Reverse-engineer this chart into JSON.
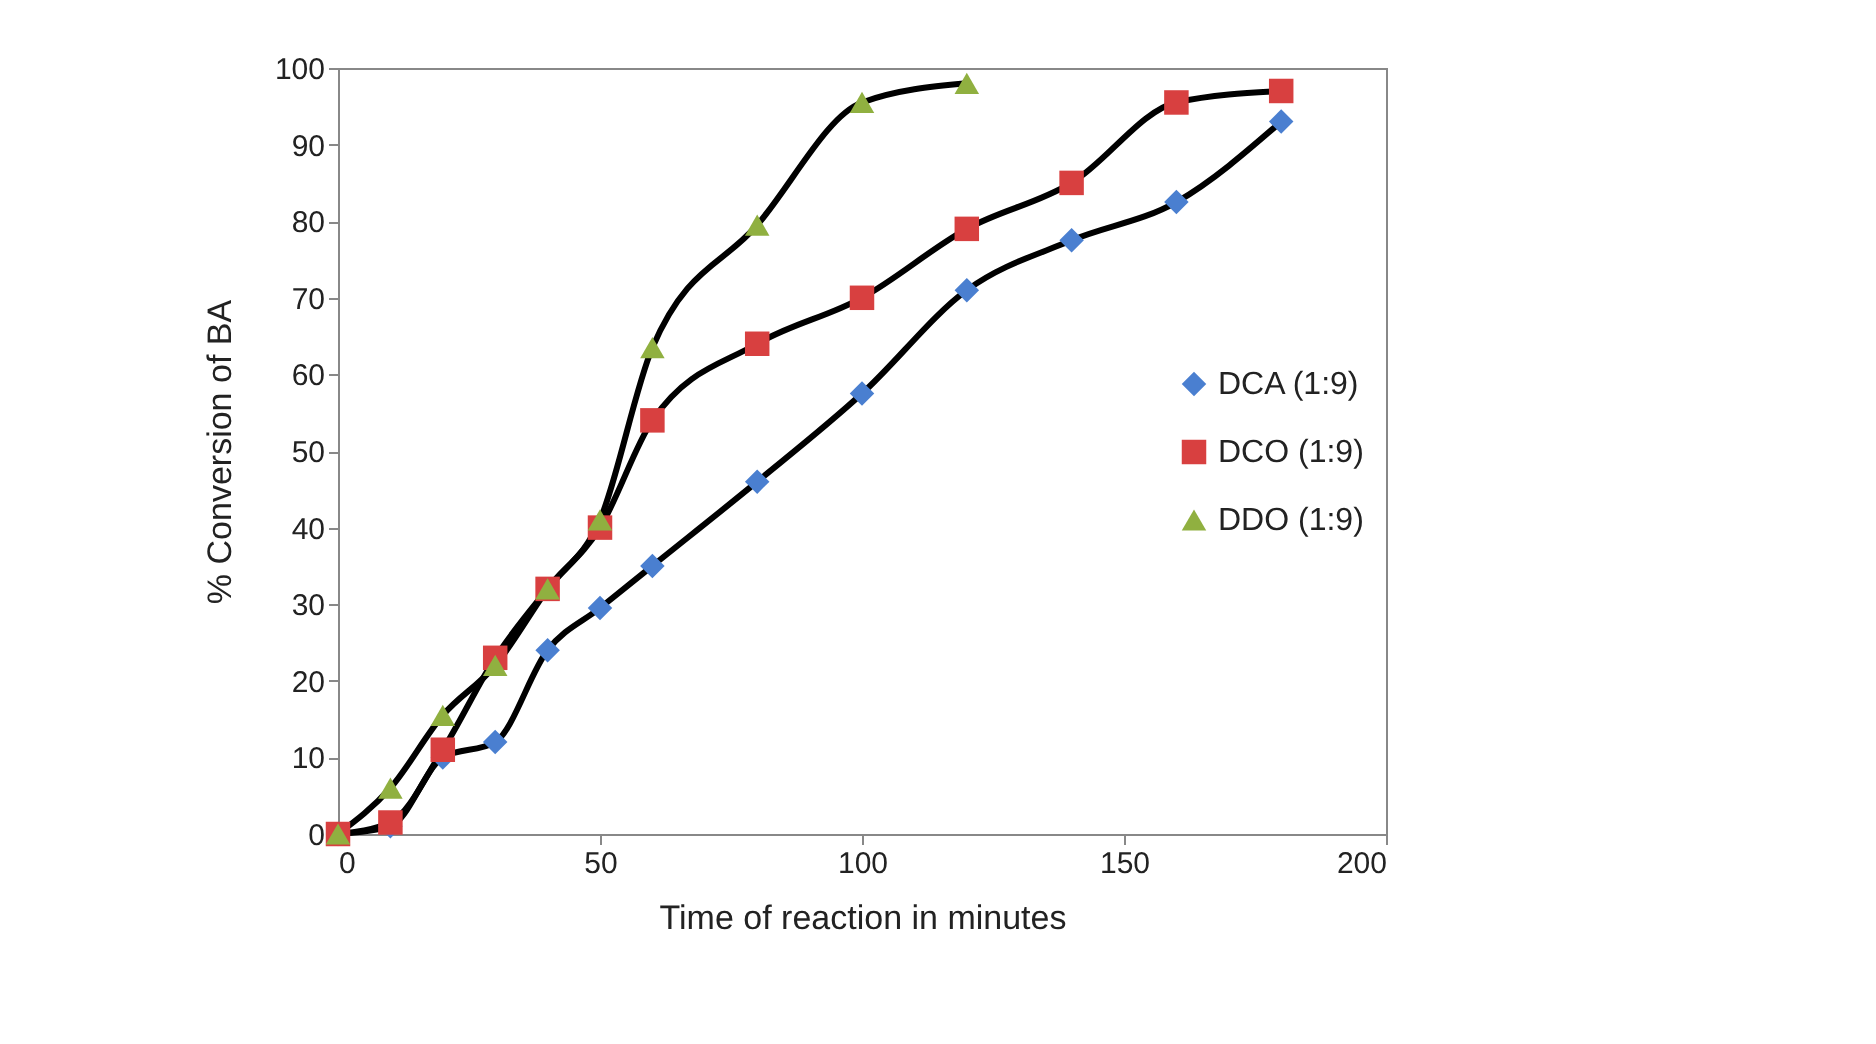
{
  "chart_data": {
    "type": "line",
    "xlabel": "Time of reaction in minutes",
    "ylabel": "% Conversion of BA",
    "xlim": [
      0,
      200
    ],
    "xticks": [
      0,
      50,
      100,
      150,
      200
    ],
    "ylim": [
      0,
      100
    ],
    "yticks": [
      0,
      10,
      20,
      30,
      40,
      50,
      60,
      70,
      80,
      90,
      100
    ],
    "grid": false,
    "legend": "right",
    "line_style": "solid",
    "series": [
      {
        "name": "DCA (1:9)",
        "color": "#4a7fd0",
        "marker": "diamond",
        "x": [
          0,
          10,
          20,
          30,
          40,
          50,
          60,
          80,
          100,
          120,
          140,
          160,
          180
        ],
        "values": [
          0,
          1,
          10,
          12,
          24,
          29.5,
          35,
          46,
          57.5,
          71,
          77.5,
          82.5,
          93
        ]
      },
      {
        "name": "DCO (1:9)",
        "color": "#d84040",
        "marker": "square",
        "x": [
          0,
          10,
          20,
          30,
          40,
          50,
          60,
          80,
          100,
          120,
          140,
          160,
          180
        ],
        "values": [
          0,
          1.5,
          11,
          23,
          32,
          40,
          54,
          64,
          70,
          79,
          85,
          95.5,
          97
        ]
      },
      {
        "name": "DDO (1:9)",
        "color": "#90b040",
        "marker": "triangle",
        "x": [
          0,
          10,
          20,
          30,
          40,
          50,
          60,
          80,
          100,
          120
        ],
        "values": [
          0,
          6,
          15.5,
          22,
          32,
          41,
          63.5,
          79.5,
          95.5,
          98
        ]
      }
    ]
  }
}
